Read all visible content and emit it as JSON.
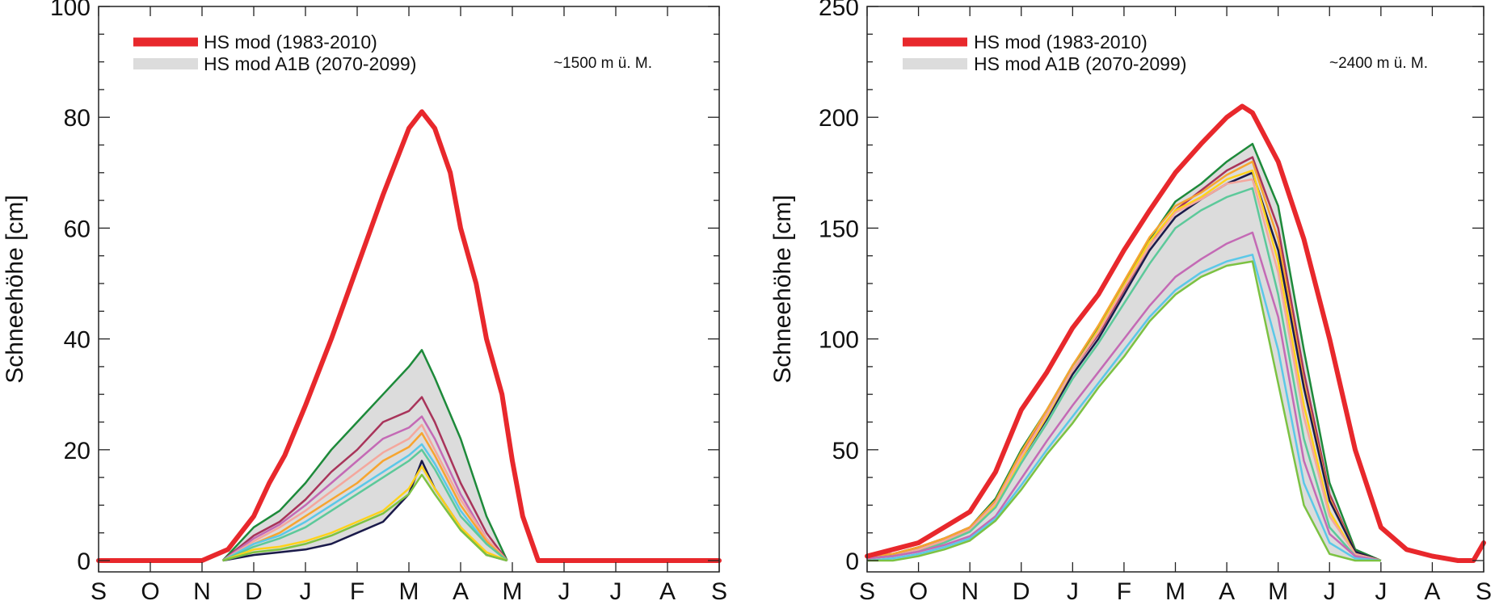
{
  "chart_data": [
    {
      "type": "line",
      "ylabel": "Schneehöhe [cm]",
      "ylim": [
        0,
        100
      ],
      "yticks": [
        "0",
        "20",
        "40",
        "60",
        "80",
        "100"
      ],
      "xticks": [
        "S",
        "O",
        "N",
        "D",
        "J",
        "F",
        "M",
        "A",
        "M",
        "J",
        "J",
        "A",
        "S"
      ],
      "annotation": "~1500 m ü. M.",
      "legend_position": "top-left",
      "legend": [
        {
          "label": "HS mod (1983-2010)",
          "color": "#e8282c",
          "style": "thick-line"
        },
        {
          "label": "HS mod A1B (2070-2099)",
          "color": "#dcdcdc",
          "style": "band"
        }
      ],
      "reference": {
        "name": "HS mod (1983-2010)",
        "color": "#e8282c",
        "x": [
          0,
          2,
          2.5,
          3,
          3.3,
          3.6,
          4,
          4.5,
          5,
          5.5,
          6,
          6.25,
          6.5,
          6.8,
          7,
          7.3,
          7.5,
          7.8,
          8,
          8.2,
          8.5,
          9,
          12
        ],
        "y": [
          0,
          0,
          2,
          8,
          14,
          19,
          28,
          40,
          53,
          66,
          78,
          81,
          78,
          70,
          60,
          50,
          40,
          30,
          18,
          8,
          0,
          0,
          0
        ]
      },
      "band": {
        "color": "#dcdcdc",
        "x": [
          2.4,
          3,
          3.5,
          4,
          4.5,
          5,
          5.5,
          6,
          6.25,
          6.5,
          7,
          7.5,
          7.9
        ],
        "upper": [
          0,
          6,
          9,
          14,
          20,
          25,
          30,
          35,
          38,
          33,
          22,
          8,
          0
        ],
        "lower": [
          0,
          1,
          1.5,
          2,
          3,
          5,
          7,
          12,
          16,
          12,
          6,
          1,
          0
        ]
      },
      "series": [
        {
          "color": "#1d8a3a",
          "x": [
            2.4,
            3,
            3.5,
            4,
            4.5,
            5,
            5.5,
            6,
            6.25,
            6.5,
            7,
            7.5,
            7.9
          ],
          "y": [
            0,
            6,
            9,
            14,
            20,
            25,
            30,
            35,
            38,
            33,
            22,
            8,
            0
          ]
        },
        {
          "color": "#a8345a",
          "x": [
            2.4,
            3,
            3.5,
            4,
            4.5,
            5,
            5.5,
            6,
            6.25,
            6.5,
            7,
            7.5,
            7.9
          ],
          "y": [
            0,
            4.5,
            7,
            11,
            16,
            20,
            25,
            27,
            29.5,
            25,
            14,
            5,
            0
          ]
        },
        {
          "color": "#c46ab5",
          "x": [
            2.4,
            3,
            3.5,
            4,
            4.5,
            5,
            5.5,
            6,
            6.25,
            6.5,
            7,
            7.5,
            7.9
          ],
          "y": [
            0,
            4,
            6.5,
            10,
            14,
            18,
            22,
            24,
            26,
            22,
            12,
            4,
            0
          ]
        },
        {
          "color": "#f4a79d",
          "x": [
            2.4,
            3,
            3.5,
            4,
            4.5,
            5,
            5.5,
            6,
            6.25,
            6.5,
            7,
            7.5,
            7.9
          ],
          "y": [
            0,
            3.5,
            6,
            9,
            12.5,
            16,
            19.5,
            22,
            24.5,
            20,
            11,
            4,
            0
          ]
        },
        {
          "color": "#f7a530",
          "x": [
            2.4,
            3,
            3.5,
            4,
            4.5,
            5,
            5.5,
            6,
            6.25,
            6.5,
            7,
            7.5,
            7.9
          ],
          "y": [
            0,
            3,
            5,
            8,
            11,
            14,
            18,
            20.5,
            23,
            19,
            10,
            3.5,
            0
          ]
        },
        {
          "color": "#5bc8e8",
          "x": [
            2.4,
            3,
            3.5,
            4,
            4.5,
            5,
            5.5,
            6,
            6.25,
            6.5,
            7,
            7.5,
            7.9
          ],
          "y": [
            0,
            3,
            4.5,
            7,
            10,
            13,
            16,
            19,
            21,
            17.5,
            9,
            3,
            0
          ]
        },
        {
          "color": "#5cc99a",
          "x": [
            2.4,
            3,
            3.5,
            4,
            4.5,
            5,
            5.5,
            6,
            6.25,
            6.5,
            7,
            7.5,
            7.9
          ],
          "y": [
            0,
            2.5,
            4,
            6,
            9,
            12,
            15,
            18,
            20,
            16.5,
            8,
            3,
            0
          ]
        },
        {
          "color": "#1a1a4a",
          "x": [
            2.4,
            3,
            3.5,
            4,
            4.5,
            5,
            5.5,
            6,
            6.25,
            6.5,
            7,
            7.5,
            7.9
          ],
          "y": [
            0,
            1,
            1.5,
            2,
            3,
            5,
            7,
            12,
            18,
            13,
            6,
            1,
            0
          ]
        },
        {
          "color": "#ffd21a",
          "x": [
            2.4,
            3,
            3.5,
            4,
            4.5,
            5,
            5.5,
            6,
            6.25,
            6.5,
            7,
            7.5,
            7.9
          ],
          "y": [
            0,
            2,
            2.5,
            3.5,
            5,
            7,
            9,
            13,
            17,
            13,
            6,
            1.5,
            0
          ]
        },
        {
          "color": "#7cc242",
          "x": [
            2.4,
            3,
            3.5,
            4,
            4.5,
            5,
            5.5,
            6,
            6.25,
            6.5,
            7,
            7.5,
            7.9
          ],
          "y": [
            0,
            1.5,
            2,
            3,
            4.5,
            6.5,
            8.5,
            12,
            15.5,
            12,
            5.5,
            1,
            0
          ]
        }
      ]
    },
    {
      "type": "line",
      "ylabel": "Schneehöhe [cm]",
      "ylim": [
        0,
        250
      ],
      "yticks": [
        "0",
        "50",
        "100",
        "150",
        "200",
        "250"
      ],
      "xticks": [
        "S",
        "O",
        "N",
        "D",
        "J",
        "F",
        "M",
        "A",
        "M",
        "J",
        "J",
        "A",
        "S"
      ],
      "annotation": "~2400 m ü. M.",
      "legend_position": "top-left",
      "legend": [
        {
          "label": "HS mod (1983-2010)",
          "color": "#e8282c",
          "style": "thick-line"
        },
        {
          "label": "HS mod A1B (2070-2099)",
          "color": "#dcdcdc",
          "style": "band"
        }
      ],
      "reference": {
        "name": "HS mod (1983-2010)",
        "color": "#e8282c",
        "x": [
          0,
          0.5,
          1,
          1.5,
          2,
          2.5,
          3,
          3.5,
          4,
          4.5,
          5,
          5.5,
          6,
          6.5,
          7,
          7.3,
          7.5,
          8,
          8.5,
          9,
          9.5,
          10,
          10.5,
          11,
          11.5,
          11.8,
          12
        ],
        "y": [
          2,
          5,
          8,
          15,
          22,
          40,
          68,
          85,
          105,
          120,
          140,
          158,
          175,
          188,
          200,
          205,
          202,
          180,
          145,
          100,
          50,
          15,
          5,
          2,
          0,
          0,
          8
        ]
      },
      "band": {
        "color": "#dcdcdc",
        "x": [
          0,
          0.5,
          1,
          1.5,
          2,
          2.5,
          3,
          3.5,
          4,
          4.5,
          5,
          5.5,
          6,
          6.5,
          7,
          7.5,
          8,
          8.5,
          9,
          9.5,
          10
        ],
        "upper": [
          2,
          3,
          6,
          10,
          15,
          28,
          50,
          68,
          88,
          105,
          125,
          145,
          162,
          170,
          180,
          188,
          160,
          95,
          35,
          5,
          0
        ],
        "lower": [
          0,
          0,
          2,
          5,
          9,
          18,
          32,
          48,
          62,
          78,
          92,
          108,
          120,
          128,
          133,
          135,
          80,
          25,
          3,
          0,
          0
        ]
      },
      "series": [
        {
          "color": "#1d8a3a",
          "x": [
            0,
            0.5,
            1,
            1.5,
            2,
            2.5,
            3,
            3.5,
            4,
            4.5,
            5,
            5.5,
            6,
            6.5,
            7,
            7.5,
            8,
            8.5,
            9,
            9.5,
            10
          ],
          "y": [
            2,
            3,
            6,
            10,
            15,
            28,
            50,
            68,
            88,
            105,
            125,
            145,
            162,
            170,
            180,
            188,
            160,
            95,
            35,
            5,
            0
          ]
        },
        {
          "color": "#a8345a",
          "x": [
            0,
            0.5,
            1,
            1.5,
            2,
            2.5,
            3,
            3.5,
            4,
            4.5,
            5,
            5.5,
            6,
            6.5,
            7,
            7.5,
            8,
            8.5,
            9,
            9.5,
            10
          ],
          "y": [
            2,
            3,
            6,
            10,
            15,
            27,
            48,
            66,
            86,
            102,
            122,
            142,
            158,
            167,
            176,
            182,
            150,
            85,
            30,
            4,
            0
          ]
        },
        {
          "color": "#f7a530",
          "x": [
            0,
            0.5,
            1,
            1.5,
            2,
            2.5,
            3,
            3.5,
            4,
            4.5,
            5,
            5.5,
            6,
            6.5,
            7,
            7.5,
            8,
            8.5,
            9,
            9.5,
            10
          ],
          "y": [
            2,
            3,
            6,
            10,
            15,
            27,
            49,
            68,
            88,
            106,
            126,
            146,
            160,
            166,
            174,
            180,
            145,
            80,
            28,
            4,
            0
          ]
        },
        {
          "color": "#1a1a4a",
          "x": [
            0,
            0.5,
            1,
            1.5,
            2,
            2.5,
            3,
            3.5,
            4,
            4.5,
            5,
            5.5,
            6,
            6.5,
            7,
            7.5,
            8,
            8.5,
            9,
            9.5,
            10
          ],
          "y": [
            1,
            2,
            5,
            9,
            14,
            26,
            46,
            64,
            84,
            100,
            120,
            140,
            155,
            163,
            170,
            175,
            140,
            78,
            27,
            4,
            0
          ]
        },
        {
          "color": "#ffd21a",
          "x": [
            0,
            0.5,
            1,
            1.5,
            2,
            2.5,
            3,
            3.5,
            4,
            4.5,
            5,
            5.5,
            6,
            6.5,
            7,
            7.5,
            8,
            8.5,
            9,
            9.5,
            10
          ],
          "y": [
            1,
            2,
            5,
            9,
            14,
            25,
            46,
            65,
            86,
            104,
            124,
            144,
            158,
            164,
            172,
            176,
            135,
            70,
            22,
            3,
            0
          ]
        },
        {
          "color": "#f4a79d",
          "x": [
            0,
            0.5,
            1,
            1.5,
            2,
            2.5,
            3,
            3.5,
            4,
            4.5,
            5,
            5.5,
            6,
            6.5,
            7,
            7.5,
            8,
            8.5,
            9,
            9.5,
            10
          ],
          "y": [
            1,
            2,
            5,
            9,
            14,
            26,
            47,
            66,
            86,
            103,
            123,
            142,
            157,
            163,
            170,
            172,
            130,
            65,
            20,
            3,
            0
          ]
        },
        {
          "color": "#5cc99a",
          "x": [
            0,
            0.5,
            1,
            1.5,
            2,
            2.5,
            3,
            3.5,
            4,
            4.5,
            5,
            5.5,
            6,
            6.5,
            7,
            7.5,
            8,
            8.5,
            9,
            9.5,
            10
          ],
          "y": [
            1,
            2,
            4,
            8,
            13,
            24,
            44,
            62,
            82,
            98,
            116,
            134,
            150,
            158,
            164,
            168,
            120,
            55,
            15,
            2,
            0
          ]
        },
        {
          "color": "#c46ab5",
          "x": [
            0,
            0.5,
            1,
            1.5,
            2,
            2.5,
            3,
            3.5,
            4,
            4.5,
            5,
            5.5,
            6,
            6.5,
            7,
            7.5,
            8,
            8.5,
            9,
            9.5,
            10
          ],
          "y": [
            1,
            2,
            4,
            7,
            11,
            20,
            37,
            54,
            70,
            85,
            100,
            115,
            128,
            136,
            143,
            148,
            110,
            45,
            12,
            2,
            0
          ]
        },
        {
          "color": "#5bc8e8",
          "x": [
            0,
            0.5,
            1,
            1.5,
            2,
            2.5,
            3,
            3.5,
            4,
            4.5,
            5,
            5.5,
            6,
            6.5,
            7,
            7.5,
            8,
            8.5,
            9,
            9.5,
            10
          ],
          "y": [
            0,
            1,
            3,
            6,
            10,
            19,
            34,
            50,
            65,
            80,
            95,
            110,
            122,
            130,
            135,
            138,
            95,
            35,
            8,
            1,
            0
          ]
        },
        {
          "color": "#7cc242",
          "x": [
            0,
            0.5,
            1,
            1.5,
            2,
            2.5,
            3,
            3.5,
            4,
            4.5,
            5,
            5.5,
            6,
            6.5,
            7,
            7.5,
            8,
            8.5,
            9,
            9.5,
            10
          ],
          "y": [
            0,
            0,
            2,
            5,
            9,
            18,
            32,
            48,
            62,
            78,
            92,
            108,
            120,
            128,
            133,
            135,
            80,
            25,
            3,
            0,
            0
          ]
        }
      ]
    }
  ]
}
